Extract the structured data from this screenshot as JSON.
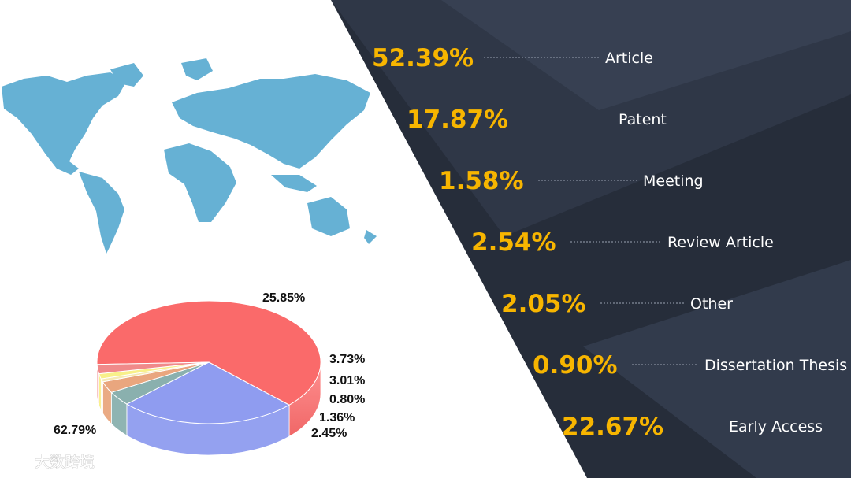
{
  "chart_data": [
    {
      "type": "table",
      "rows": [
        {
          "value": "52.39%",
          "label": "Article"
        },
        {
          "value": "17.87%",
          "label": "Patent"
        },
        {
          "value": "1.58%",
          "label": "Meeting"
        },
        {
          "value": "2.54%",
          "label": "Review Article"
        },
        {
          "value": "2.05%",
          "label": "Other"
        },
        {
          "value": "0.90%",
          "label": "Dissertation Thesis"
        },
        {
          "value": "22.67%",
          "label": "Early Access"
        }
      ]
    },
    {
      "type": "pie",
      "style": "3d",
      "values": [
        62.79,
        25.85,
        3.73,
        3.01,
        0.8,
        1.36,
        2.45
      ],
      "labels": [
        "62.79%",
        "25.85%",
        "3.73%",
        "3.01%",
        "0.80%",
        "1.36%",
        "2.45%"
      ],
      "colors": [
        "#fa6a6a",
        "#8f9cf0",
        "#8ab0ae",
        "#e9a67e",
        "#f5e9b3",
        "#f8f08a",
        "#f08a8a"
      ]
    }
  ],
  "colors": {
    "panel_dark": "#262d3a",
    "panel_mid": "#323b4c",
    "accent": "#f7b500",
    "map": "#66b1d4"
  },
  "watermark": {
    "logo": "大数跨境"
  },
  "icons": {
    "map": "world-map-icon"
  }
}
